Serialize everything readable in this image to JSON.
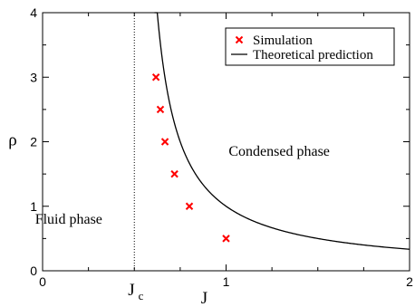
{
  "chart_data": {
    "type": "scatter",
    "title": "",
    "xlabel": "J",
    "ylabel": "ρ",
    "xlim": [
      0,
      2
    ],
    "ylim": [
      0,
      4
    ],
    "x_ticks": [
      "0",
      "1",
      "2"
    ],
    "y_ticks": [
      "0",
      "1",
      "2",
      "3",
      "4"
    ],
    "grid": false,
    "legend": {
      "placement": "top-right",
      "entries": [
        "Simulation",
        "Theoretical prediction"
      ]
    },
    "critical_line": {
      "x": 0.5,
      "style": "dotted",
      "label_main": "J",
      "label_sub": "c"
    },
    "series": [
      {
        "name": "Simulation",
        "kind": "scatter",
        "marker": "x",
        "color": "#ff0000",
        "x": [
          0.618,
          0.642,
          0.667,
          0.719,
          0.8,
          1.0
        ],
        "y": [
          3.0,
          2.5,
          2.0,
          1.5,
          1.0,
          0.5
        ]
      },
      {
        "name": "Theoretical prediction",
        "kind": "line",
        "color": "#000000",
        "formula": "rho = J_c / (J - J_c)",
        "x_range": [
          0.61,
          2.0
        ]
      }
    ],
    "annotations": [
      {
        "text": "Fluid phase",
        "x": 0.28,
        "y": 0.8
      },
      {
        "text": "Condensed phase",
        "x": 1.35,
        "y": 1.85
      }
    ]
  }
}
